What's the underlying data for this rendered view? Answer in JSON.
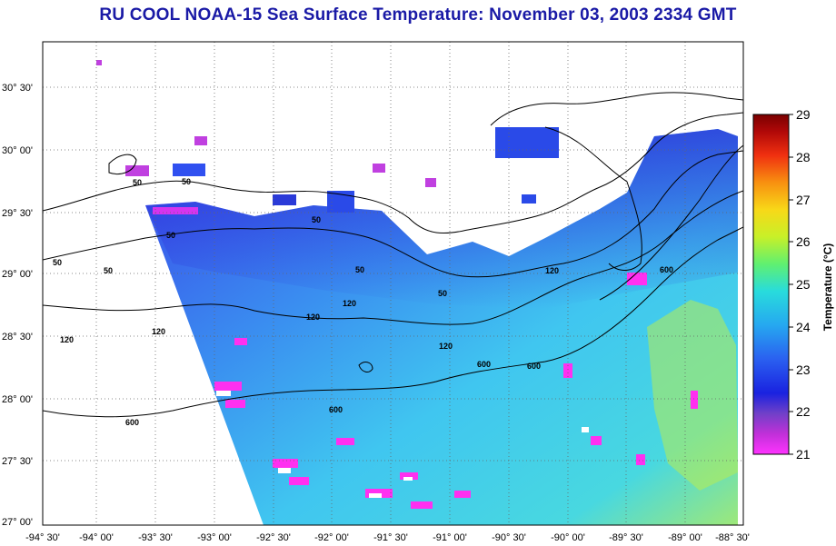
{
  "title": "RU COOL  NOAA-15  Sea Surface Temperature:  November 03, 2003 2334 GMT",
  "map": {
    "longitude_labels": [
      "-94° 30'",
      "-94° 00'",
      "-93° 30'",
      "-93° 00'",
      "-92° 30'",
      "-92° 00'",
      "-91° 30'",
      "-91° 00'",
      "-90° 30'",
      "-90° 00'",
      "-89° 30'",
      "-89° 00'",
      "-88° 30'"
    ],
    "latitude_labels": [
      "30° 30'",
      "30° 00'",
      "29° 30'",
      "29° 00'",
      "28° 30'",
      "28° 00'",
      "27° 30'",
      "27° 00'"
    ],
    "contour_labels": [
      "50",
      "50",
      "50",
      "50",
      "50",
      "50",
      "50",
      "50",
      "120",
      "120",
      "120",
      "120",
      "120",
      "120",
      "600",
      "600",
      "600",
      "600",
      "600"
    ]
  },
  "colorbar": {
    "label": "Temperature (°C)",
    "ticks": [
      "29",
      "28",
      "27",
      "26",
      "25",
      "24",
      "23",
      "22",
      "21"
    ],
    "min": 21,
    "max": 29
  },
  "colors": {
    "title": "#1a1aa6",
    "scale": [
      "#ff33ff",
      "#8040c0",
      "#1020e0",
      "#2a6cf0",
      "#26b4f0",
      "#28e8d8",
      "#70f060",
      "#e8f020",
      "#f8a010",
      "#f03010",
      "#a00000",
      "#7a0000"
    ]
  }
}
